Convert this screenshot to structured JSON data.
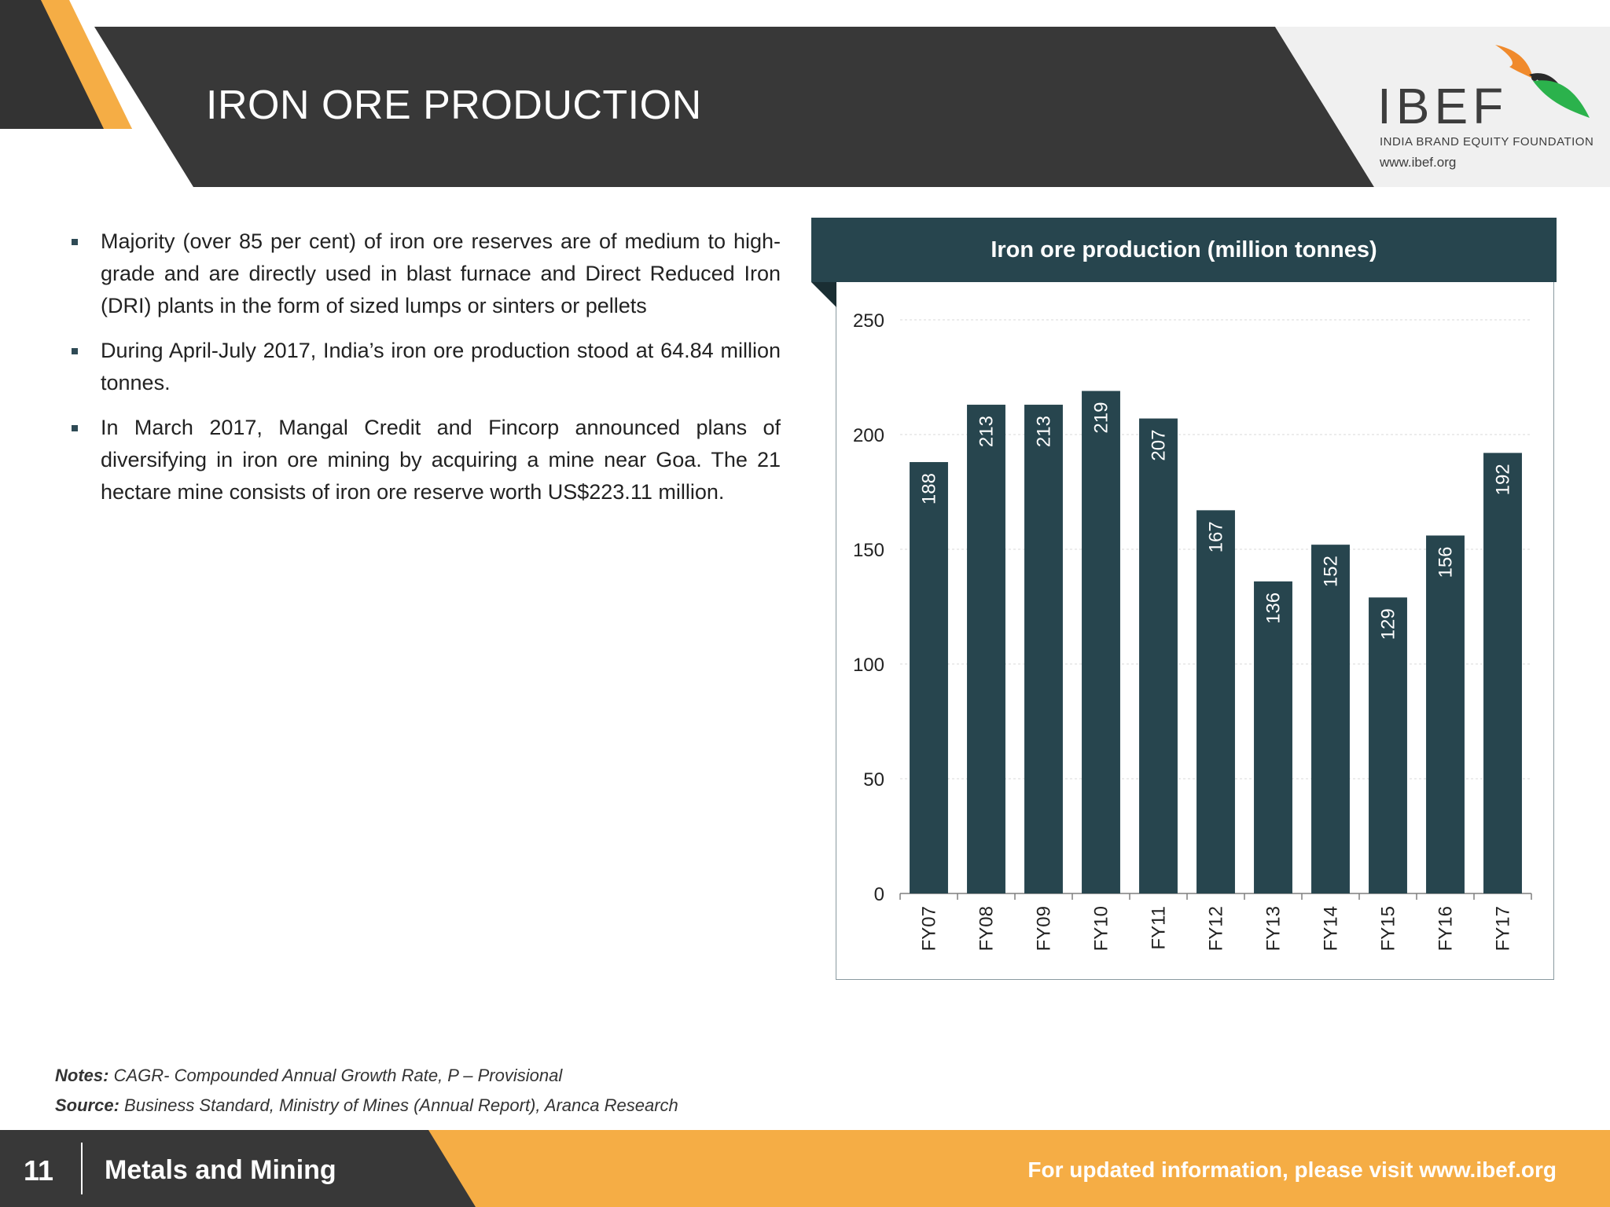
{
  "header": {
    "title": "IRON ORE PRODUCTION",
    "logo": {
      "wordmark": "IBEF",
      "tagline": "INDIA BRAND EQUITY FOUNDATION",
      "url": "www.ibef.org"
    }
  },
  "bullets": [
    "Majority (over 85 per cent) of iron ore reserves are of medium to high-grade and are directly used in blast furnace and Direct Reduced Iron (DRI) plants in the form of sized lumps or sinters or pellets",
    "During April-July 2017, India’s iron ore production stood at 64.84 million tonnes.",
    "In March 2017, Mangal Credit and Fincorp announced plans of diversifying in iron ore mining by acquiring a mine near Goa. The 21 hectare mine consists of iron ore reserve worth US$223.11 million."
  ],
  "chart_data": {
    "type": "bar",
    "title": "Iron ore production (million tonnes)",
    "categories": [
      "FY07",
      "FY08",
      "FY09",
      "FY10",
      "FY11",
      "FY12",
      "FY13",
      "FY14",
      "FY15",
      "FY16",
      "FY17"
    ],
    "values": [
      188,
      213,
      213,
      219,
      207,
      167,
      136,
      152,
      129,
      156,
      192
    ],
    "ylim": [
      0,
      250
    ],
    "yticks": [
      0,
      50,
      100,
      150,
      200,
      250
    ],
    "data_labels": "rotated, inside top of bar",
    "grid": true,
    "bar_color": "#27454e"
  },
  "notes": {
    "notes_label": "Notes:",
    "notes_text": "CAGR- Compounded Annual Growth Rate, P – Provisional",
    "source_label": "Source:",
    "source_text": "Business Standard, Ministry of Mines (Annual Report), Aranca Research"
  },
  "footer": {
    "page_number": "11",
    "section": "Metals and Mining",
    "link_text": "For updated information, please visit www.ibef.org"
  },
  "colors": {
    "dark": "#333333",
    "accent_orange": "#f5ad45",
    "chart_header": "#27454e"
  }
}
